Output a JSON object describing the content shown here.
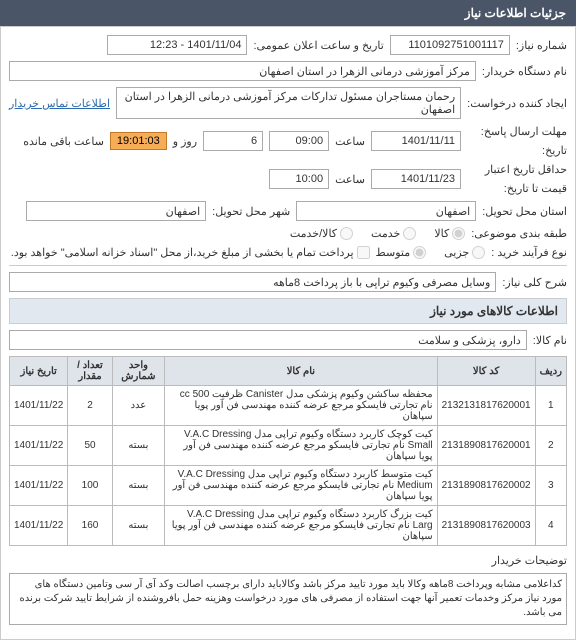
{
  "header": "جزئیات اطلاعات نیاز",
  "form": {
    "need_no_lbl": "شماره نیاز:",
    "need_no": "1101092751001117",
    "ann_lbl": "تاریخ و ساعت اعلان عمومی:",
    "ann_val": "1401/11/04 - 12:23",
    "buyer_lbl": "نام دستگاه خریدار:",
    "buyer": "مرکز آموزشی درمانی الزهرا در استان اصفهان",
    "creator_lbl": "ایجاد کننده درخواست:",
    "creator": "رحمان مستاجران مسئول تدارکات مرکز آموزشی درمانی الزهرا در استان اصفهان",
    "contact_link": "اطلاعات تماس خریدار",
    "deadline_send_lbl": "مهلت ارسال پاسخ:",
    "deadline_send_lbl2": "تاریخ:",
    "date1": "1401/11/11",
    "time_lbl": "ساعت",
    "time1": "09:00",
    "days": "6",
    "days_lbl": "روز و",
    "countdown": "19:01:03",
    "remain_lbl": "ساعت باقی مانده",
    "valid_lbl": "حداقل تاریخ اعتبار",
    "valid_lbl2": "قیمت تا تاریخ:",
    "date2": "1401/11/23",
    "time2": "10:00",
    "province_lbl": "استان محل تحویل:",
    "province": "اصفهان",
    "city_lbl": "شهر محل تحویل:",
    "city": "اصفهان",
    "subject_type_lbl": "طبقه بندی موضوعی:",
    "subject_opt1": "کالا",
    "subject_opt2": "خدمت",
    "subject_opt3": "کالا/خدمت",
    "process_lbl": "نوع فرآیند خرید :",
    "proc_opt1": "جزیی",
    "proc_opt2": "متوسط",
    "pay_note": "پرداخت تمام یا بخشی از مبلغ خرید،از محل \"اسناد خزانه اسلامی\" خواهد بود.",
    "desc_lbl": "شرح کلی نیاز:",
    "desc": "وسایل مصرفی وکیوم تراپی با باز پرداخت 8ماهه"
  },
  "items_section": "اطلاعات کالاهای مورد نیاز",
  "goods_lbl": "نام کالا:",
  "goods": "دارو، پزشکی و سلامت",
  "table": {
    "headers": [
      "ردیف",
      "کد کالا",
      "نام کالا",
      "واحد شمارش",
      "تعداد / مقدار",
      "تاریخ نیاز"
    ],
    "rows": [
      [
        "1",
        "2132131817620001",
        "محفظه ساکشن وکیوم پزشکی مدل Canister ظرفیت cc 500 نام تجارتی فایسکو مرجع عرضه کننده مهندسی فن آور پویا سپاهان",
        "عدد",
        "2",
        "1401/11/22"
      ],
      [
        "2",
        "2131890817620001",
        "کیت کوچک کاربرد دستگاه وکیوم تراپی مدل V.A.C Dressing Small نام تجارتی فایسکو مرجع عرضه کننده مهندسی فن آور پویا سپاهان",
        "بسته",
        "50",
        "1401/11/22"
      ],
      [
        "3",
        "2131890817620002",
        "کیت متوسط کاربرد دستگاه وکیوم تراپی مدل V.A.C Dressing Medium نام تجارتی فایسکو مرجع عرضه کننده مهندسی فن آور پویا سپاهان",
        "بسته",
        "100",
        "1401/11/22"
      ],
      [
        "4",
        "2131890817620003",
        "کیت بزرگ کاربرد دستگاه وکیوم تراپی مدل V.A.C Dressing Larg نام تجارتی فایسکو مرجع عرضه کننده مهندسی فن آور پویا سپاهان",
        "بسته",
        "160",
        "1401/11/22"
      ]
    ]
  },
  "notes_lbl": "توضیحات خریدار",
  "notes": "کداعلامی مشابه  وپرداخت 8ماهه وکالا باید مورد تایید مرکز باشد وکالاباید دارای برچسب اصالت وکد آی آر سی  وتامین دستگاه های مورد نیاز مرکز وخدمات تعمیر آنها جهت استفاده از مصرفی های مورد درخواست  وهزینه حمل بافروشنده از شرایط تایید شرکت برنده می باشد."
}
